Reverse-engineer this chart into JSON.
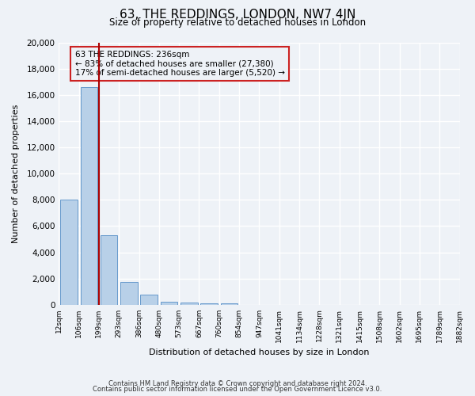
{
  "title": "63, THE REDDINGS, LONDON, NW7 4JN",
  "subtitle": "Size of property relative to detached houses in London",
  "xlabel": "Distribution of detached houses by size in London",
  "ylabel": "Number of detached properties",
  "bar_values": [
    8050,
    16600,
    5300,
    1750,
    750,
    250,
    150,
    100,
    100,
    0,
    0,
    0,
    0,
    0,
    0,
    0,
    0,
    0,
    0,
    0
  ],
  "bar_labels": [
    "12sqm",
    "106sqm",
    "199sqm",
    "293sqm",
    "386sqm",
    "480sqm",
    "573sqm",
    "667sqm",
    "760sqm",
    "854sqm",
    "947sqm",
    "1041sqm",
    "1134sqm",
    "1228sqm",
    "1321sqm",
    "1415sqm",
    "1508sqm",
    "1602sqm",
    "1695sqm",
    "1789sqm",
    "1882sqm"
  ],
  "ylim": [
    0,
    20000
  ],
  "yticks": [
    0,
    2000,
    4000,
    6000,
    8000,
    10000,
    12000,
    14000,
    16000,
    18000,
    20000
  ],
  "bar_color": "#b8d0e8",
  "bar_edge_color": "#6699cc",
  "annotation_title": "63 THE REDDINGS: 236sqm",
  "annotation_line1": "← 83% of detached houses are smaller (27,380)",
  "annotation_line2": "17% of semi-detached houses are larger (5,520) →",
  "footer_line1": "Contains HM Land Registry data © Crown copyright and database right 2024.",
  "footer_line2": "Contains public sector information licensed under the Open Government Licence v3.0.",
  "bg_color": "#eef2f7",
  "grid_color": "#ffffff",
  "figsize": [
    6.0,
    5.0
  ],
  "dpi": 100
}
